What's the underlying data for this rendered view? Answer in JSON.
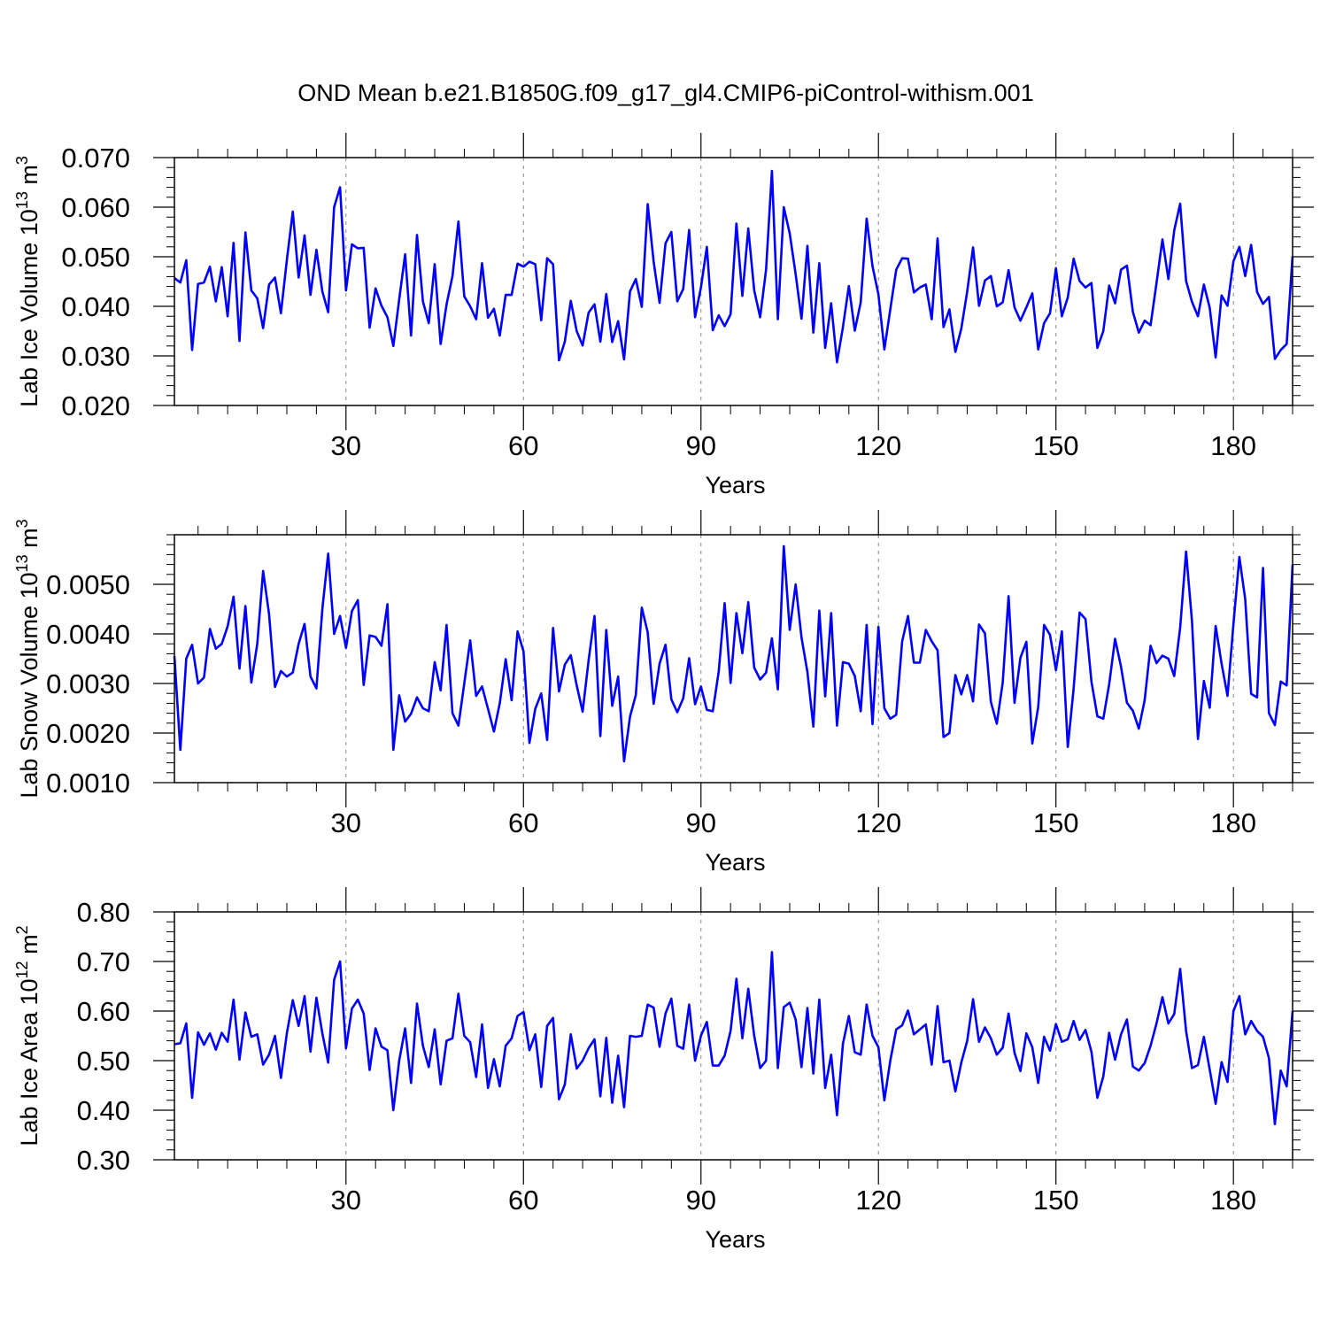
{
  "title": "OND Mean b.e21.B1850G.f09_g17_gl4.CMIP6-piControl-withism.001",
  "line_color": "#0000ff",
  "chart_data": [
    {
      "type": "line",
      "ylabel": "Lab Ice Volume 10",
      "ylabel_exp": "13",
      "ylabel_unit": "m",
      "ylabel_unit_exp": "3",
      "xlabel": "Years",
      "xlim": [
        1,
        190
      ],
      "ylim": [
        0.02,
        0.07
      ],
      "x_ticks": [
        30,
        60,
        90,
        120,
        150,
        180
      ],
      "x_tick_labels": [
        "30",
        "60",
        "90",
        "120",
        "150",
        "180"
      ],
      "y_ticks": [
        0.02,
        0.03,
        0.04,
        0.05,
        0.06,
        0.07
      ],
      "y_tick_labels": [
        "0.020",
        "0.030",
        "0.040",
        "0.050",
        "0.060",
        "0.070"
      ],
      "y_minor_step": 0.002,
      "series": [
        {
          "name": "Lab Ice Volume",
          "values": [
            0.0457,
            0.0448,
            0.0493,
            0.0312,
            0.0445,
            0.0448,
            0.048,
            0.041,
            0.0479,
            0.038,
            0.0528,
            0.033,
            0.0549,
            0.0432,
            0.0416,
            0.0356,
            0.0444,
            0.0458,
            0.0386,
            0.0493,
            0.0591,
            0.0458,
            0.0543,
            0.0423,
            0.0514,
            0.043,
            0.0388,
            0.06,
            0.064,
            0.0432,
            0.0525,
            0.0517,
            0.0518,
            0.0357,
            0.0436,
            0.0401,
            0.0378,
            0.032,
            0.0414,
            0.0505,
            0.0341,
            0.0544,
            0.041,
            0.0366,
            0.0485,
            0.0324,
            0.0404,
            0.0461,
            0.0571,
            0.042,
            0.04,
            0.0374,
            0.0487,
            0.0377,
            0.0395,
            0.0341,
            0.0423,
            0.0423,
            0.0486,
            0.048,
            0.049,
            0.0485,
            0.0372,
            0.0497,
            0.0485,
            0.0291,
            0.0329,
            0.0411,
            0.035,
            0.0321,
            0.0387,
            0.0404,
            0.0329,
            0.0425,
            0.0328,
            0.037,
            0.0293,
            0.043,
            0.0455,
            0.0399,
            0.0606,
            0.049,
            0.0407,
            0.0527,
            0.055,
            0.041,
            0.0435,
            0.0554,
            0.0378,
            0.0438,
            0.052,
            0.0352,
            0.0382,
            0.036,
            0.0384,
            0.0567,
            0.0421,
            0.0557,
            0.0432,
            0.0378,
            0.0474,
            0.0673,
            0.0374,
            0.06,
            0.0547,
            0.0465,
            0.0375,
            0.0522,
            0.0347,
            0.0487,
            0.0316,
            0.0406,
            0.0287,
            0.0358,
            0.0441,
            0.0351,
            0.0408,
            0.0577,
            0.0481,
            0.0424,
            0.0313,
            0.0394,
            0.0474,
            0.0497,
            0.0496,
            0.0428,
            0.0438,
            0.0444,
            0.0374,
            0.0537,
            0.0358,
            0.0394,
            0.0308,
            0.0355,
            0.043,
            0.0519,
            0.0401,
            0.0452,
            0.0461,
            0.04,
            0.0408,
            0.0473,
            0.0398,
            0.0371,
            0.0398,
            0.0426,
            0.0313,
            0.0366,
            0.0386,
            0.0477,
            0.038,
            0.0418,
            0.0496,
            0.0451,
            0.0438,
            0.0447,
            0.0316,
            0.035,
            0.0442,
            0.0406,
            0.0474,
            0.0482,
            0.0389,
            0.0347,
            0.0371,
            0.0362,
            0.0447,
            0.0535,
            0.0455,
            0.0553,
            0.0607,
            0.0451,
            0.0409,
            0.038,
            0.0444,
            0.0397,
            0.0297,
            0.0422,
            0.0401,
            0.0491,
            0.052,
            0.0461,
            0.0524,
            0.0429,
            0.0405,
            0.0419,
            0.0294,
            0.0312,
            0.0324,
            0.0501
          ]
        }
      ]
    },
    {
      "type": "line",
      "ylabel": "Lab Snow Volume 10",
      "ylabel_exp": "13",
      "ylabel_unit": "m",
      "ylabel_unit_exp": "3",
      "xlabel": "Years",
      "xlim": [
        1,
        190
      ],
      "ylim": [
        0.001,
        0.006
      ],
      "x_ticks": [
        30,
        60,
        90,
        120,
        150,
        180
      ],
      "x_tick_labels": [
        "30",
        "60",
        "90",
        "120",
        "150",
        "180"
      ],
      "y_ticks": [
        0.001,
        0.002,
        0.003,
        0.004,
        0.005
      ],
      "y_tick_labels": [
        "0.0010",
        "0.0020",
        "0.0030",
        "0.0040",
        "0.0050"
      ],
      "y_minor_step": 0.0002,
      "series": [
        {
          "name": "Lab Snow Volume",
          "values": [
            0.00355,
            0.00166,
            0.0035,
            0.00378,
            0.003,
            0.00312,
            0.0041,
            0.0037,
            0.0038,
            0.00415,
            0.00475,
            0.0033,
            0.00456,
            0.00302,
            0.0038,
            0.00527,
            0.0044,
            0.00293,
            0.00325,
            0.00314,
            0.00322,
            0.0038,
            0.0042,
            0.00314,
            0.0029,
            0.0045,
            0.00562,
            0.004,
            0.00436,
            0.00372,
            0.00446,
            0.00468,
            0.00297,
            0.00397,
            0.00394,
            0.00376,
            0.0046,
            0.00166,
            0.00276,
            0.00223,
            0.00239,
            0.00272,
            0.0025,
            0.00244,
            0.00343,
            0.00286,
            0.00418,
            0.0024,
            0.00215,
            0.003,
            0.00387,
            0.00275,
            0.00294,
            0.00249,
            0.00203,
            0.0026,
            0.00349,
            0.00266,
            0.00405,
            0.00365,
            0.0018,
            0.00249,
            0.0028,
            0.00186,
            0.00412,
            0.00284,
            0.00338,
            0.00357,
            0.00296,
            0.00243,
            0.00346,
            0.00436,
            0.00194,
            0.00408,
            0.00255,
            0.00314,
            0.00143,
            0.00233,
            0.00277,
            0.00453,
            0.00403,
            0.00259,
            0.0034,
            0.00378,
            0.00268,
            0.00242,
            0.0027,
            0.00351,
            0.00258,
            0.00294,
            0.00247,
            0.00244,
            0.00324,
            0.00462,
            0.00301,
            0.00442,
            0.00361,
            0.00464,
            0.00332,
            0.00308,
            0.00322,
            0.00391,
            0.00288,
            0.00577,
            0.00408,
            0.005,
            0.00393,
            0.00323,
            0.00213,
            0.00447,
            0.00274,
            0.00442,
            0.00215,
            0.00343,
            0.0034,
            0.00315,
            0.00244,
            0.00418,
            0.00218,
            0.00414,
            0.0025,
            0.00229,
            0.00237,
            0.00385,
            0.00436,
            0.00342,
            0.00342,
            0.00408,
            0.00385,
            0.00367,
            0.00192,
            0.002,
            0.00317,
            0.00278,
            0.00317,
            0.00264,
            0.00419,
            0.00401,
            0.00263,
            0.00219,
            0.00302,
            0.00476,
            0.00261,
            0.00352,
            0.00384,
            0.00179,
            0.00253,
            0.00418,
            0.00398,
            0.00327,
            0.00405,
            0.00172,
            0.0029,
            0.00443,
            0.0043,
            0.00304,
            0.00234,
            0.00229,
            0.00298,
            0.0039,
            0.00334,
            0.00261,
            0.00245,
            0.00209,
            0.00266,
            0.00376,
            0.00341,
            0.00356,
            0.0035,
            0.00315,
            0.00412,
            0.00566,
            0.00425,
            0.00188,
            0.00305,
            0.00251,
            0.00416,
            0.0034,
            0.00275,
            0.0042,
            0.00555,
            0.0047,
            0.00279,
            0.00272,
            0.00533,
            0.0024,
            0.00216,
            0.00304,
            0.00296,
            0.0054
          ]
        }
      ]
    },
    {
      "type": "line",
      "ylabel": "Lab Ice Area 10",
      "ylabel_exp": "12",
      "ylabel_unit": "m",
      "ylabel_unit_exp": "2",
      "xlabel": "Years",
      "xlim": [
        1,
        190
      ],
      "ylim": [
        0.3,
        0.8
      ],
      "x_ticks": [
        30,
        60,
        90,
        120,
        150,
        180
      ],
      "x_tick_labels": [
        "30",
        "60",
        "90",
        "120",
        "150",
        "180"
      ],
      "y_ticks": [
        0.3,
        0.4,
        0.5,
        0.6,
        0.7,
        0.8
      ],
      "y_tick_labels": [
        "0.30",
        "0.40",
        "0.50",
        "0.60",
        "0.70",
        "0.80"
      ],
      "y_minor_step": 0.02,
      "series": [
        {
          "name": "Lab Ice Area",
          "values": [
            0.533,
            0.535,
            0.575,
            0.425,
            0.557,
            0.532,
            0.555,
            0.522,
            0.556,
            0.538,
            0.623,
            0.502,
            0.597,
            0.548,
            0.553,
            0.492,
            0.512,
            0.55,
            0.465,
            0.555,
            0.622,
            0.57,
            0.63,
            0.518,
            0.627,
            0.555,
            0.496,
            0.663,
            0.7,
            0.525,
            0.605,
            0.623,
            0.595,
            0.481,
            0.565,
            0.528,
            0.521,
            0.4,
            0.5,
            0.565,
            0.455,
            0.615,
            0.53,
            0.487,
            0.563,
            0.452,
            0.54,
            0.545,
            0.635,
            0.55,
            0.537,
            0.467,
            0.573,
            0.445,
            0.503,
            0.448,
            0.53,
            0.545,
            0.59,
            0.598,
            0.521,
            0.553,
            0.447,
            0.57,
            0.586,
            0.422,
            0.452,
            0.553,
            0.484,
            0.5,
            0.525,
            0.543,
            0.428,
            0.546,
            0.415,
            0.51,
            0.406,
            0.55,
            0.548,
            0.55,
            0.613,
            0.607,
            0.528,
            0.595,
            0.625,
            0.53,
            0.524,
            0.613,
            0.5,
            0.55,
            0.578,
            0.49,
            0.49,
            0.51,
            0.56,
            0.665,
            0.545,
            0.645,
            0.55,
            0.485,
            0.5,
            0.719,
            0.485,
            0.608,
            0.617,
            0.583,
            0.487,
            0.606,
            0.474,
            0.623,
            0.445,
            0.512,
            0.39,
            0.534,
            0.59,
            0.517,
            0.512,
            0.613,
            0.55,
            0.527,
            0.42,
            0.5,
            0.563,
            0.571,
            0.601,
            0.553,
            0.563,
            0.573,
            0.492,
            0.61,
            0.497,
            0.5,
            0.438,
            0.496,
            0.54,
            0.624,
            0.538,
            0.567,
            0.545,
            0.512,
            0.526,
            0.595,
            0.516,
            0.479,
            0.555,
            0.527,
            0.455,
            0.548,
            0.52,
            0.574,
            0.538,
            0.543,
            0.58,
            0.542,
            0.562,
            0.518,
            0.425,
            0.468,
            0.556,
            0.502,
            0.553,
            0.583,
            0.488,
            0.48,
            0.495,
            0.53,
            0.575,
            0.628,
            0.575,
            0.594,
            0.685,
            0.56,
            0.485,
            0.491,
            0.548,
            0.482,
            0.413,
            0.497,
            0.457,
            0.6,
            0.63,
            0.553,
            0.58,
            0.56,
            0.548,
            0.505,
            0.372,
            0.48,
            0.448,
            0.6
          ]
        }
      ]
    }
  ]
}
